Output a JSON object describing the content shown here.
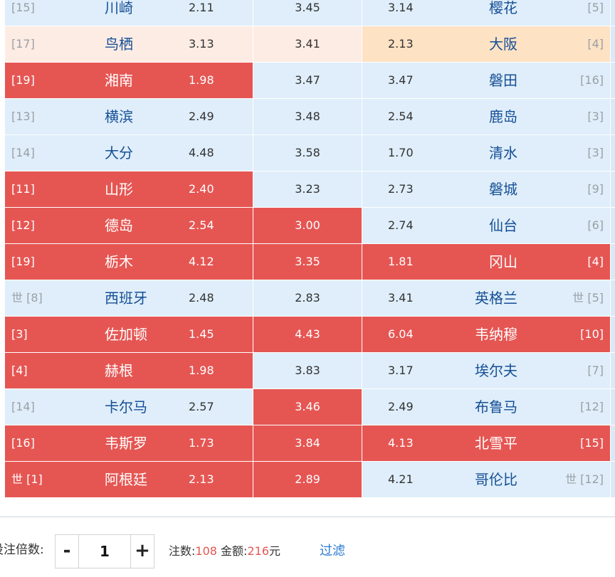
{
  "matches": [
    {
      "home_rank": "[15]",
      "home": "川崎",
      "home_odds": "2.11",
      "draw_odds": "3.45",
      "away_odds": "3.14",
      "away": "樱花",
      "away_rank": "[5]",
      "home_style": "blue",
      "draw_style": "blue",
      "away_style": "blue"
    },
    {
      "home_rank": "[17]",
      "home": "鸟栖",
      "home_odds": "3.13",
      "draw_odds": "3.41",
      "away_odds": "2.13",
      "away": "大阪",
      "away_rank": "[4]",
      "home_style": "pink",
      "draw_style": "pink",
      "away_style": "peach"
    },
    {
      "home_rank": "[19]",
      "home": "湘南",
      "home_odds": "1.98",
      "draw_odds": "3.47",
      "away_odds": "3.47",
      "away": "磐田",
      "away_rank": "[16]",
      "home_style": "red",
      "draw_style": "blue",
      "away_style": "blue"
    },
    {
      "home_rank": "[13]",
      "home": "横滨",
      "home_odds": "2.49",
      "draw_odds": "3.48",
      "away_odds": "2.54",
      "away": "鹿岛",
      "away_rank": "[3]",
      "home_style": "blue",
      "draw_style": "blue",
      "away_style": "blue"
    },
    {
      "home_rank": "[14]",
      "home": "大分",
      "home_odds": "4.48",
      "draw_odds": "3.58",
      "away_odds": "1.70",
      "away": "清水",
      "away_rank": "[3]",
      "home_style": "blue",
      "draw_style": "blue",
      "away_style": "blue"
    },
    {
      "home_rank": "[11]",
      "home": "山形",
      "home_odds": "2.40",
      "draw_odds": "3.23",
      "away_odds": "2.73",
      "away": "磐城",
      "away_rank": "[9]",
      "home_style": "red",
      "draw_style": "blue",
      "away_style": "blue"
    },
    {
      "home_rank": "[12]",
      "home": "德岛",
      "home_odds": "2.54",
      "draw_odds": "3.00",
      "away_odds": "2.74",
      "away": "仙台",
      "away_rank": "[6]",
      "home_style": "red",
      "draw_style": "red",
      "away_style": "blue"
    },
    {
      "home_rank": "[19]",
      "home": "栃木",
      "home_odds": "4.12",
      "draw_odds": "3.35",
      "away_odds": "1.81",
      "away": "冈山",
      "away_rank": "[4]",
      "home_style": "red",
      "draw_style": "red",
      "away_style": "red"
    },
    {
      "home_rank": "世 [8]",
      "home": "西班牙",
      "home_odds": "2.48",
      "draw_odds": "2.83",
      "away_odds": "3.41",
      "away": "英格兰",
      "away_rank": "世 [5]",
      "home_style": "blue",
      "draw_style": "blue",
      "away_style": "blue"
    },
    {
      "home_rank": "[3]",
      "home": "佐加顿",
      "home_odds": "1.45",
      "draw_odds": "4.43",
      "away_odds": "6.04",
      "away": "韦纳穆",
      "away_rank": "[10]",
      "home_style": "red",
      "draw_style": "red",
      "away_style": "red"
    },
    {
      "home_rank": "[4]",
      "home": "赫根",
      "home_odds": "1.98",
      "draw_odds": "3.83",
      "away_odds": "3.17",
      "away": "埃尔夫",
      "away_rank": "[7]",
      "home_style": "red",
      "draw_style": "blue",
      "away_style": "blue"
    },
    {
      "home_rank": "[14]",
      "home": "卡尔马",
      "home_odds": "2.57",
      "draw_odds": "3.46",
      "away_odds": "2.49",
      "away": "布鲁马",
      "away_rank": "[12]",
      "home_style": "blue",
      "draw_style": "red",
      "away_style": "blue"
    },
    {
      "home_rank": "[16]",
      "home": "韦斯罗",
      "home_odds": "1.73",
      "draw_odds": "3.84",
      "away_odds": "4.13",
      "away": "北雪平",
      "away_rank": "[15]",
      "home_style": "red",
      "draw_style": "red",
      "away_style": "red"
    },
    {
      "home_rank": "世 [1]",
      "home": "阿根廷",
      "home_odds": "2.13",
      "draw_odds": "2.89",
      "away_odds": "4.21",
      "away": "哥伦比",
      "away_rank": "世 [12]",
      "home_style": "red",
      "draw_style": "red",
      "away_style": "blue"
    }
  ],
  "toolbar": {
    "multiplier_label": "投注倍数:",
    "minus_label": "-",
    "plus_label": "+",
    "multiplier_value": "1",
    "count_label": "注数:",
    "count_value": "108",
    "amount_label": "金额:",
    "amount_value": "216",
    "amount_unit": "元",
    "filter_label": "过滤"
  },
  "colors": {
    "red": "#e55653",
    "blue": "#dfeefa",
    "pink": "#fdece4",
    "peach": "#fde2c4",
    "team_text": "#154f96",
    "link": "#2a7bd3"
  }
}
